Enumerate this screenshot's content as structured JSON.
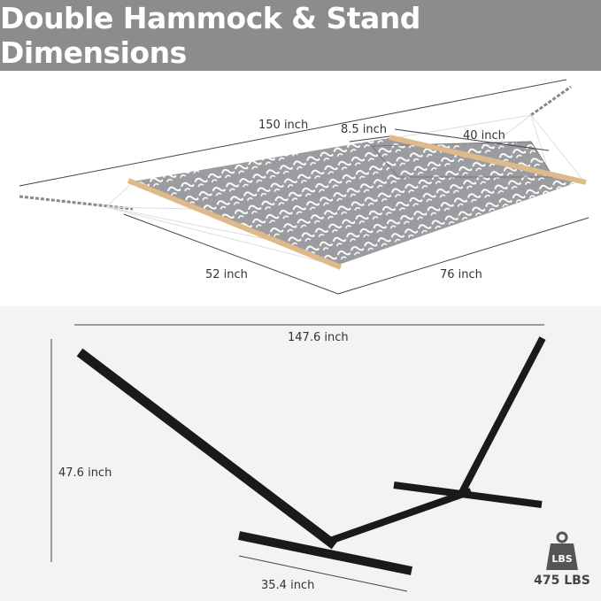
{
  "title": "Double Hammock & Stand Dimensions",
  "hammock": {
    "length_total": "150 inch",
    "pillow_width": "8.5 inch",
    "pillow_length": "40 inch",
    "width": "52 inch",
    "bed_length": "76 inch"
  },
  "stand": {
    "length": "147.6 inch",
    "height": "47.6 inch",
    "base_width": "35.4 inch"
  },
  "weight_badge": {
    "icon": "weight-icon",
    "icon_label": "LBS",
    "capacity": "475 LBS"
  },
  "colors": {
    "header": "#8b8c8e",
    "fabric": "#9a9ca0",
    "stand": "#1a1a1a",
    "wood": "#e0b98a"
  }
}
